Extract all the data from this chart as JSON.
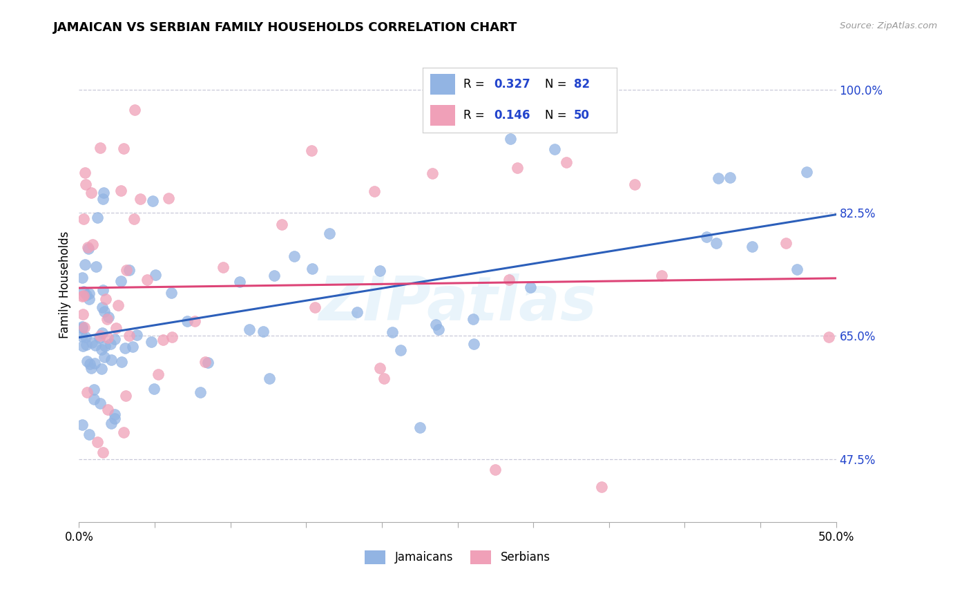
{
  "title": "JAMAICAN VS SERBIAN FAMILY HOUSEHOLDS CORRELATION CHART",
  "source": "Source: ZipAtlas.com",
  "ylabel": "Family Households",
  "ytick_labels": [
    "100.0%",
    "82.5%",
    "65.0%",
    "47.5%"
  ],
  "ytick_values": [
    1.0,
    0.825,
    0.65,
    0.475
  ],
  "xmin": 0.0,
  "xmax": 0.5,
  "ymin": 0.385,
  "ymax": 1.06,
  "r_jamaican": 0.327,
  "n_jamaican": 82,
  "r_serbian": 0.146,
  "n_serbian": 50,
  "color_jamaican": "#92b4e3",
  "color_jamaican_line": "#2c5fba",
  "color_serbian": "#f0a0b8",
  "color_serbian_line": "#dd4477",
  "legend_text_color": "#2244cc",
  "watermark": "ZIPatlas",
  "grid_color": "#c8c8d8",
  "xtick_positions": [
    0.0,
    0.05,
    0.1,
    0.15,
    0.2,
    0.25,
    0.3,
    0.35,
    0.4,
    0.45,
    0.5
  ],
  "seed": 77
}
